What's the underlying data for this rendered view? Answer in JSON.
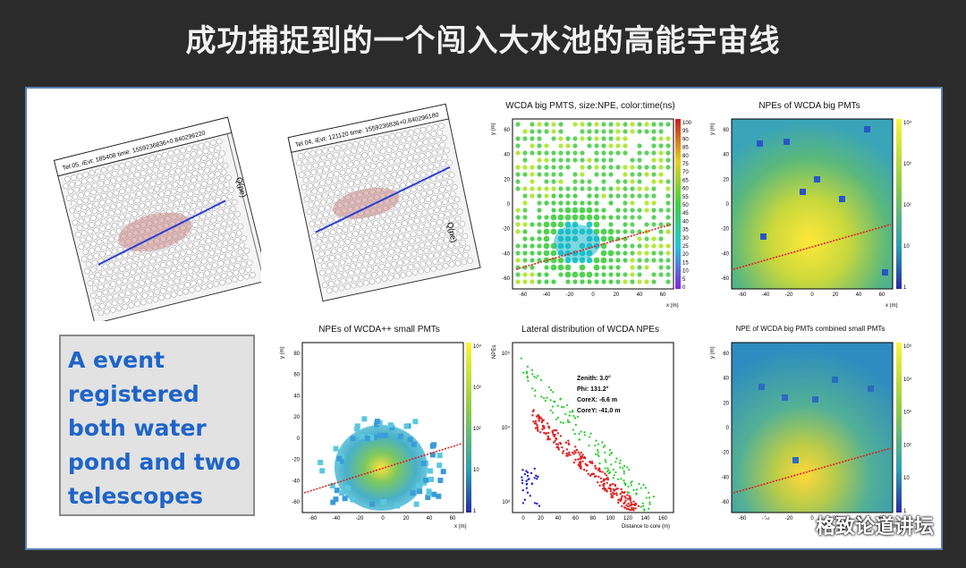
{
  "slide_title": "成功捕捉到的一个闯入大水池的高能宇宙线",
  "callout": {
    "lines": [
      "A event",
      "registered",
      "both water",
      "pond and two",
      "telescopes"
    ]
  },
  "telescope1": {
    "header": "Tel 05, iEvt: 185408   time: 1559236836+0.840296220",
    "zlabel": "Q(pe)"
  },
  "telescope2": {
    "header": "Tel 04, iEvt: 121120   time: 1559236836+0.840296180",
    "zlabel": "Q(pe)"
  },
  "panel_timing": {
    "title": "WCDA big PMTS, size:NPE, color:time(ns)",
    "xlabel": "x (m)",
    "ylabel": "y (m)",
    "xticks": [
      "-60",
      "-40",
      "-20",
      "0",
      "20",
      "40",
      "60"
    ],
    "yticks": [
      "60",
      "40",
      "20",
      "0",
      "-20",
      "-40",
      "-60"
    ],
    "scale": [
      "100",
      "95",
      "90",
      "85",
      "80",
      "75",
      "70",
      "65",
      "60",
      "55",
      "50",
      "45",
      "40",
      "35",
      "30",
      "25",
      "20",
      "15",
      "10",
      "5",
      "0"
    ]
  },
  "panel_big": {
    "title": "NPEs of WCDA big PMTs",
    "xlabel": "x (m)",
    "ylabel": "y (m)",
    "xticks": [
      "-60",
      "-40",
      "-20",
      "0",
      "20",
      "40",
      "60"
    ],
    "yticks": [
      "60",
      "40",
      "20",
      "0",
      "-20",
      "-40",
      "-60"
    ],
    "scale": [
      "10⁴",
      "10³",
      "10²",
      "10",
      "1"
    ]
  },
  "panel_small": {
    "title": "NPEs of WCDA++ small PMTs",
    "xlabel": "x (m)",
    "ylabel": "y (m)",
    "xticks": [
      "-60",
      "-40",
      "-20",
      "0",
      "20",
      "40",
      "60"
    ],
    "yticks": [
      "80",
      "60",
      "40",
      "20",
      "0",
      "-20",
      "-40",
      "-60"
    ],
    "scale": [
      "10⁴",
      "10³",
      "10²",
      "10",
      "1"
    ]
  },
  "panel_lateral": {
    "title": "Lateral distribution of WCDA NPEs",
    "xlabel": "Distance to core (m)",
    "ylabel": "NPEs",
    "xticks": [
      "0",
      "20",
      "40",
      "60",
      "80",
      "100",
      "120",
      "140",
      "160"
    ],
    "yticks": [
      "10⁵",
      "10⁴",
      "10³"
    ],
    "info": [
      "Zenith: 3.0°",
      "Phi: 131.2°",
      "CoreX: -6.6 m",
      "CoreY: -41.0 m"
    ]
  },
  "panel_combined": {
    "title": "NPE of WCDA big PMTs combined small PMTs",
    "xlabel": "x (m)",
    "ylabel": "y (m)",
    "xticks": [
      "-60",
      "-40",
      "-20",
      "0",
      "20",
      "40",
      "60"
    ],
    "yticks": [
      "60",
      "40",
      "20",
      "0",
      "-20",
      "-40",
      "-60"
    ],
    "scale": [
      "10⁵",
      "10⁴",
      "10³",
      "10²",
      "10",
      "1"
    ]
  },
  "watermark": "格致论道讲坛"
}
